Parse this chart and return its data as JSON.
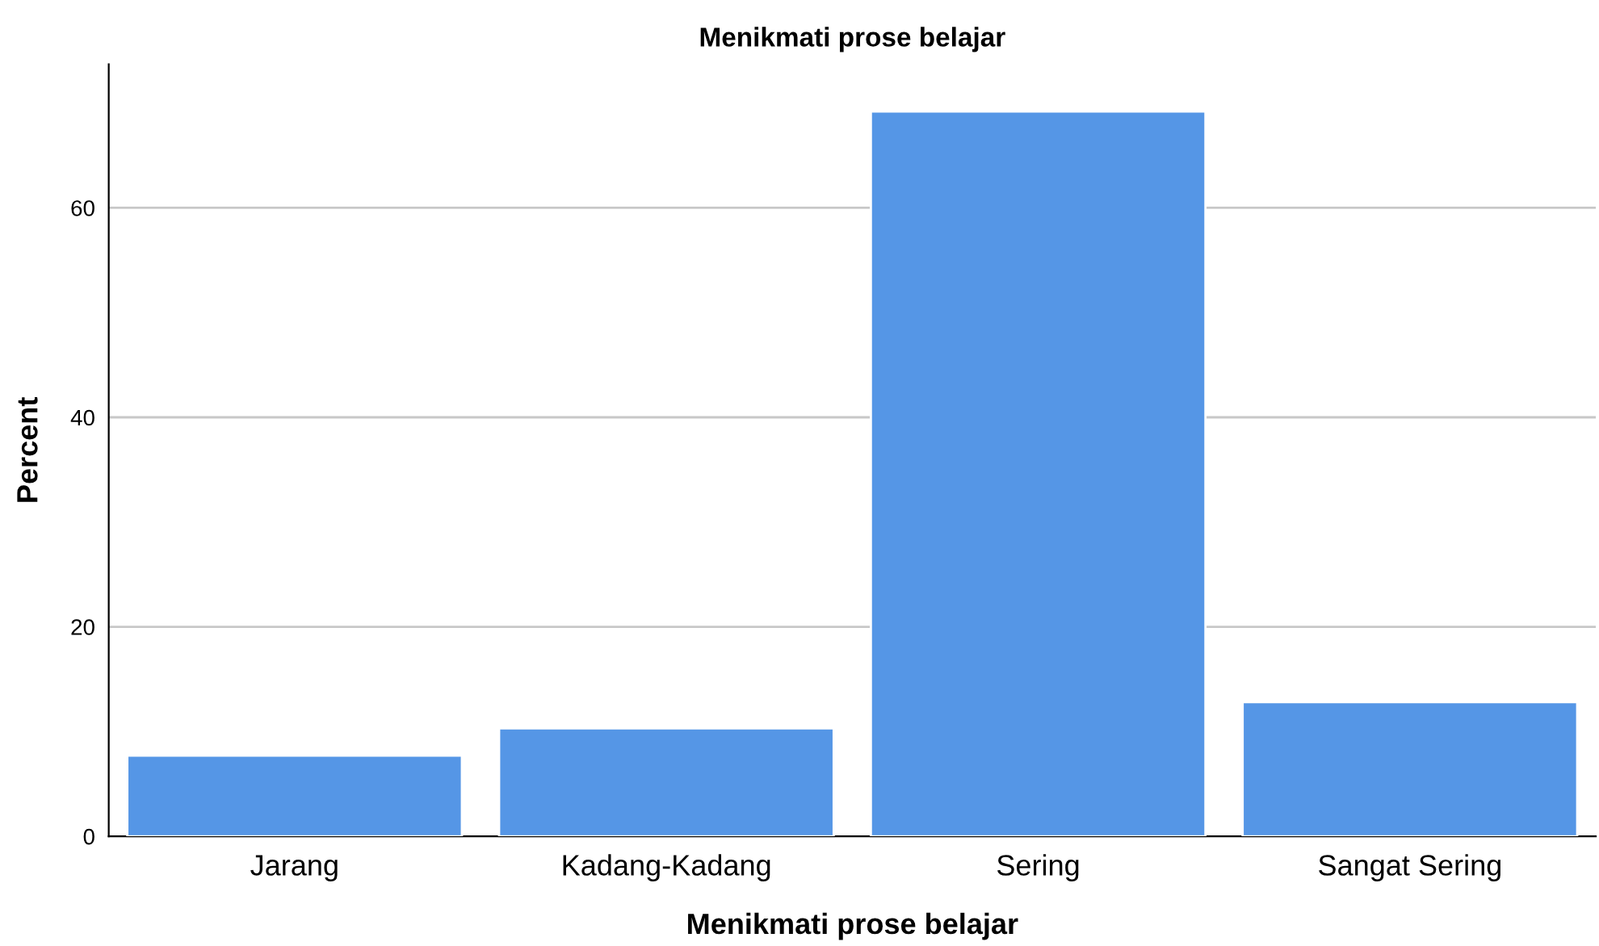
{
  "chart_data": {
    "type": "bar",
    "title": "Menikmati prose belajar",
    "xlabel": "Menikmati prose belajar",
    "ylabel": "Percent",
    "categories": [
      "Jarang",
      "Kadang-Kadang",
      "Sering",
      "Sangat Sering"
    ],
    "values": [
      7.7,
      10.3,
      69.2,
      12.8
    ],
    "color": "#5596e6",
    "ylim": [
      0,
      73.7
    ],
    "yticks": [
      0,
      20,
      40,
      60
    ],
    "grid": "y"
  }
}
